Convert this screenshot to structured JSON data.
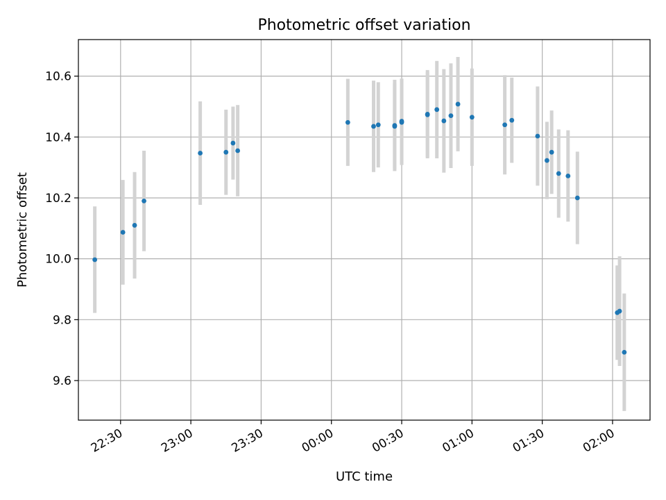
{
  "chart_data": {
    "type": "scatter",
    "title": "Photometric offset variation",
    "xlabel": "UTC time",
    "ylabel": "Photometric offset",
    "x_unit": "UTC time (HH:MM, crossing midnight)",
    "xlim": [
      "22:12",
      "02:16"
    ],
    "ylim": [
      9.47,
      10.72
    ],
    "x_ticks": [
      "22:30",
      "23:00",
      "23:30",
      "00:00",
      "00:30",
      "01:00",
      "01:30",
      "02:00"
    ],
    "y_ticks": [
      9.6,
      9.8,
      10.0,
      10.2,
      10.4,
      10.6
    ],
    "y_tick_labels": [
      "9.6",
      "9.8",
      "10.0",
      "10.2",
      "10.4",
      "10.6"
    ],
    "grid": true,
    "marker_color": "#1f77b4",
    "errorbar_color": "#d3d3d3",
    "series": [
      {
        "points": [
          {
            "x": "22:19",
            "y": 9.997,
            "err": 0.175
          },
          {
            "x": "22:31",
            "y": 10.087,
            "err": 0.172
          },
          {
            "x": "22:36",
            "y": 10.11,
            "err": 0.175
          },
          {
            "x": "22:40",
            "y": 10.19,
            "err": 0.165
          },
          {
            "x": "23:04",
            "y": 10.347,
            "err": 0.17
          },
          {
            "x": "23:15",
            "y": 10.35,
            "err": 0.14
          },
          {
            "x": "23:18",
            "y": 10.38,
            "err": 0.12
          },
          {
            "x": "23:20",
            "y": 10.355,
            "err": 0.15
          },
          {
            "x": "00:07",
            "y": 10.448,
            "err": 0.143
          },
          {
            "x": "00:18",
            "y": 10.435,
            "err": 0.15
          },
          {
            "x": "00:20",
            "y": 10.44,
            "err": 0.14
          },
          {
            "x": "00:27",
            "y": 10.438,
            "err": 0.15
          },
          {
            "x": "00:27",
            "y": 10.435,
            "err": 0.14
          },
          {
            "x": "00:30",
            "y": 10.448,
            "err": 0.14
          },
          {
            "x": "00:30",
            "y": 10.452,
            "err": 0.14
          },
          {
            "x": "00:41",
            "y": 10.475,
            "err": 0.145
          },
          {
            "x": "00:41",
            "y": 10.473,
            "err": 0.14
          },
          {
            "x": "00:45",
            "y": 10.49,
            "err": 0.16
          },
          {
            "x": "00:48",
            "y": 10.453,
            "err": 0.17
          },
          {
            "x": "00:51",
            "y": 10.47,
            "err": 0.172
          },
          {
            "x": "00:54",
            "y": 10.508,
            "err": 0.155
          },
          {
            "x": "01:00",
            "y": 10.465,
            "err": 0.16
          },
          {
            "x": "01:14",
            "y": 10.44,
            "err": 0.163
          },
          {
            "x": "01:17",
            "y": 10.455,
            "err": 0.14
          },
          {
            "x": "01:28",
            "y": 10.403,
            "err": 0.163
          },
          {
            "x": "01:32",
            "y": 10.323,
            "err": 0.127
          },
          {
            "x": "01:34",
            "y": 10.35,
            "err": 0.137
          },
          {
            "x": "01:37",
            "y": 10.28,
            "err": 0.145
          },
          {
            "x": "01:41",
            "y": 10.272,
            "err": 0.15
          },
          {
            "x": "01:45",
            "y": 10.2,
            "err": 0.152
          },
          {
            "x": "02:02",
            "y": 9.823,
            "err": 0.155
          },
          {
            "x": "02:03",
            "y": 9.828,
            "err": 0.18
          },
          {
            "x": "02:05",
            "y": 9.693,
            "err": 0.193
          }
        ]
      }
    ]
  }
}
